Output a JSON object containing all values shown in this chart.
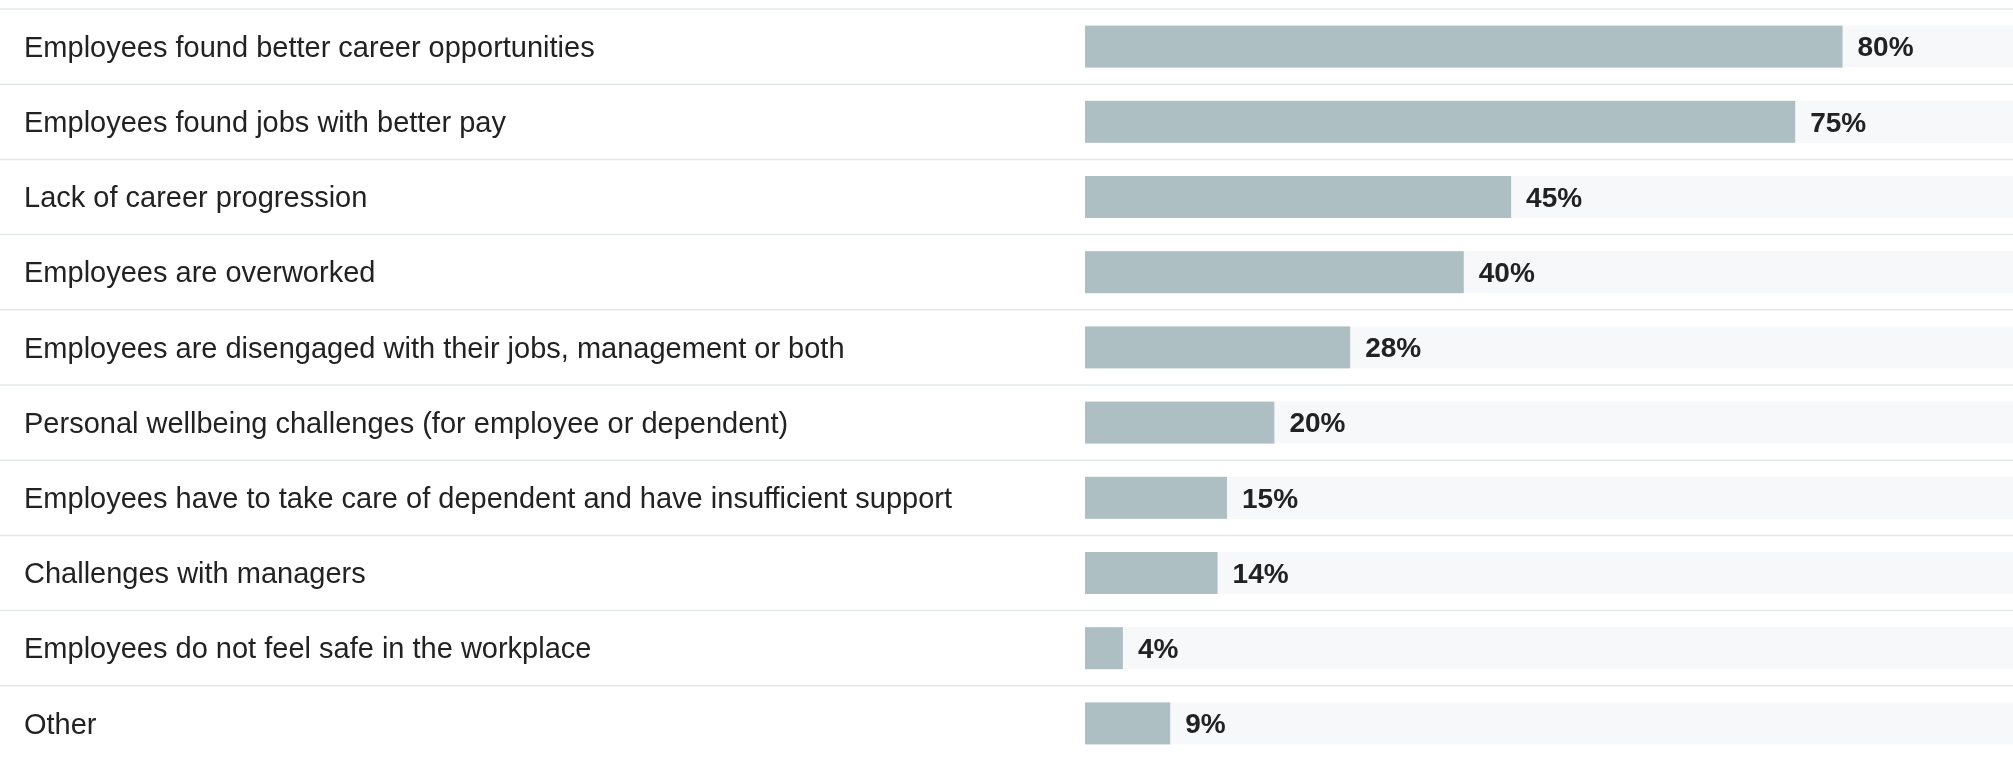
{
  "chart_data": {
    "type": "bar",
    "orientation": "horizontal",
    "categories": [
      "Employees found better career opportunities",
      "Employees found jobs with better pay",
      "Lack of career progression",
      "Employees are overworked",
      "Employees are disengaged with their jobs, management or both",
      "Personal wellbeing challenges (for employee or dependent)",
      "Employees have to take care of dependent and have insufficient support",
      "Challenges with managers",
      "Employees do not feel safe in the workplace",
      "Other"
    ],
    "values": [
      80,
      75,
      45,
      40,
      28,
      20,
      15,
      14,
      4,
      9
    ],
    "value_labels": [
      "80%",
      "75%",
      "45%",
      "40%",
      "28%",
      "20%",
      "15%",
      "14%",
      "4%",
      "9%"
    ],
    "color": "#adbfc3",
    "xlim": [
      0,
      98
    ],
    "tick_labels": "y"
  }
}
